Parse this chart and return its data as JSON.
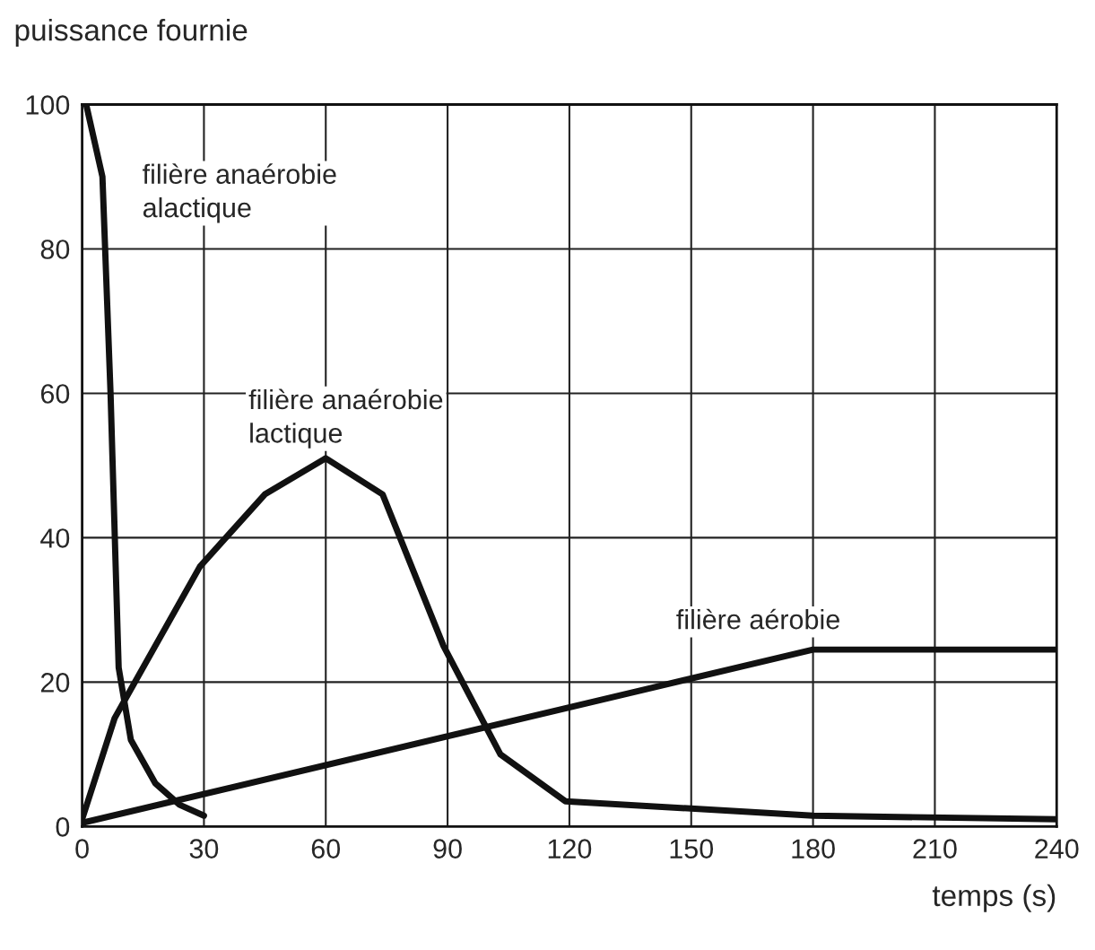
{
  "chart_data": {
    "type": "line",
    "xlabel": "temps (s)",
    "ylabel": "puissance fournie",
    "series": [
      {
        "name": "filière anaérobie\nalactique",
        "color": "#111111",
        "x": [
          1,
          5,
          7,
          9,
          12,
          18,
          24,
          30
        ],
        "values": [
          100,
          90,
          60,
          22,
          12,
          6,
          3,
          1.5
        ]
      },
      {
        "name": "filière anaérobie\nlactique",
        "color": "#111111",
        "x": [
          0,
          8,
          29,
          45,
          60,
          74,
          89,
          103,
          119,
          180,
          240
        ],
        "values": [
          1,
          15,
          36,
          46,
          51,
          46,
          25,
          10,
          3.5,
          1.5,
          1
        ]
      },
      {
        "name": "filière aérobie",
        "color": "#111111",
        "x": [
          0,
          180,
          240
        ],
        "values": [
          0.5,
          24.5,
          24.5
        ]
      }
    ],
    "xlim": [
      0,
      240
    ],
    "ylim": [
      0,
      100
    ],
    "xticks": [
      0,
      30,
      60,
      90,
      120,
      150,
      180,
      210,
      240
    ],
    "yticks": [
      0,
      20,
      40,
      60,
      80,
      100
    ],
    "grid": true,
    "line_style": "solid",
    "marker": "none"
  }
}
